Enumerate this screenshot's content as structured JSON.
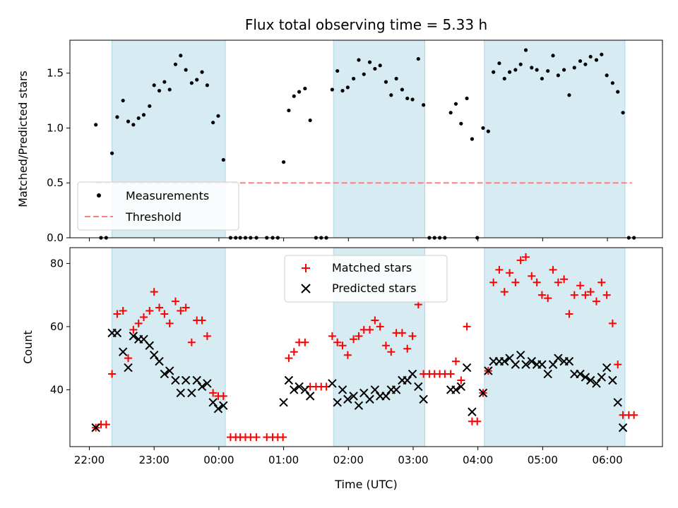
{
  "chart_data": {
    "type": "scatter",
    "title": "Flux total observing time = 5.33 h",
    "xlabel": "Time (UTC)",
    "x_ticks": [
      "22:00",
      "23:00",
      "00:00",
      "01:00",
      "02:00",
      "03:00",
      "04:00",
      "05:00",
      "06:00"
    ],
    "x_tick_values": [
      22.0,
      23.0,
      24.0,
      25.0,
      26.0,
      27.0,
      28.0,
      29.0,
      30.0
    ],
    "xlim": [
      21.7,
      30.85
    ],
    "shaded_intervals": [
      [
        22.35,
        24.1
      ],
      [
        25.77,
        27.18
      ],
      [
        28.1,
        30.27
      ]
    ],
    "shade_color": "#add8e6",
    "top": {
      "ylabel": "Matched/Predicted stars",
      "ylim": [
        0,
        1.8
      ],
      "y_ticks": [
        0.0,
        0.5,
        1.0,
        1.5
      ],
      "y_tick_labels": [
        "0.0",
        "0.5",
        "1.0",
        "1.5"
      ],
      "legend": {
        "placement": "lower-left",
        "measurements": "Measurements",
        "threshold": "Threshold"
      },
      "threshold": {
        "value": 0.5,
        "x_range": [
          22.1,
          30.38
        ],
        "color": "#ff8080"
      },
      "measurements": [
        [
          22.1,
          1.03
        ],
        [
          22.18,
          0
        ],
        [
          22.26,
          0
        ],
        [
          22.35,
          0.77
        ],
        [
          22.43,
          1.1
        ],
        [
          22.52,
          1.25
        ],
        [
          22.6,
          1.06
        ],
        [
          22.68,
          1.03
        ],
        [
          22.76,
          1.09
        ],
        [
          22.84,
          1.12
        ],
        [
          22.93,
          1.2
        ],
        [
          23.0,
          1.39
        ],
        [
          23.08,
          1.34
        ],
        [
          23.16,
          1.42
        ],
        [
          23.24,
          1.35
        ],
        [
          23.33,
          1.58
        ],
        [
          23.41,
          1.66
        ],
        [
          23.49,
          1.53
        ],
        [
          23.58,
          1.41
        ],
        [
          23.66,
          1.44
        ],
        [
          23.74,
          1.51
        ],
        [
          23.82,
          1.39
        ],
        [
          23.91,
          1.05
        ],
        [
          23.99,
          1.11
        ],
        [
          24.07,
          0.71
        ],
        [
          24.18,
          0
        ],
        [
          24.26,
          0
        ],
        [
          24.33,
          0
        ],
        [
          24.41,
          0
        ],
        [
          24.49,
          0
        ],
        [
          24.58,
          0
        ],
        [
          24.74,
          0
        ],
        [
          24.83,
          0
        ],
        [
          24.91,
          0
        ],
        [
          25.0,
          0.69
        ],
        [
          25.08,
          1.16
        ],
        [
          25.16,
          1.29
        ],
        [
          25.24,
          1.33
        ],
        [
          25.33,
          1.36
        ],
        [
          25.41,
          1.07
        ],
        [
          25.5,
          0
        ],
        [
          25.58,
          0
        ],
        [
          25.66,
          0
        ],
        [
          25.75,
          1.35
        ],
        [
          25.83,
          1.52
        ],
        [
          25.91,
          1.34
        ],
        [
          25.99,
          1.37
        ],
        [
          26.08,
          1.45
        ],
        [
          26.16,
          1.62
        ],
        [
          26.24,
          1.49
        ],
        [
          26.33,
          1.6
        ],
        [
          26.41,
          1.54
        ],
        [
          26.49,
          1.57
        ],
        [
          26.58,
          1.42
        ],
        [
          26.66,
          1.3
        ],
        [
          26.74,
          1.45
        ],
        [
          26.83,
          1.35
        ],
        [
          26.91,
          1.27
        ],
        [
          26.99,
          1.26
        ],
        [
          27.08,
          1.63
        ],
        [
          27.16,
          1.21
        ],
        [
          27.25,
          0
        ],
        [
          27.33,
          0
        ],
        [
          27.41,
          0
        ],
        [
          27.49,
          0
        ],
        [
          27.58,
          1.14
        ],
        [
          27.66,
          1.22
        ],
        [
          27.74,
          1.04
        ],
        [
          27.83,
          1.27
        ],
        [
          27.91,
          0.9
        ],
        [
          27.99,
          0
        ],
        [
          28.08,
          1.0
        ],
        [
          28.16,
          0.97
        ],
        [
          28.24,
          1.51
        ],
        [
          28.33,
          1.59
        ],
        [
          28.41,
          1.45
        ],
        [
          28.49,
          1.51
        ],
        [
          28.58,
          1.53
        ],
        [
          28.66,
          1.58
        ],
        [
          28.74,
          1.71
        ],
        [
          28.83,
          1.55
        ],
        [
          28.91,
          1.53
        ],
        [
          28.99,
          1.45
        ],
        [
          29.08,
          1.52
        ],
        [
          29.16,
          1.66
        ],
        [
          29.24,
          1.48
        ],
        [
          29.33,
          1.53
        ],
        [
          29.41,
          1.3
        ],
        [
          29.49,
          1.55
        ],
        [
          29.58,
          1.61
        ],
        [
          29.66,
          1.58
        ],
        [
          29.74,
          1.65
        ],
        [
          29.83,
          1.62
        ],
        [
          29.91,
          1.67
        ],
        [
          29.99,
          1.48
        ],
        [
          30.08,
          1.41
        ],
        [
          30.16,
          1.33
        ],
        [
          30.24,
          1.14
        ],
        [
          30.33,
          0
        ],
        [
          30.41,
          0
        ]
      ]
    },
    "bottom": {
      "ylabel": "Count",
      "ylim": [
        22,
        85
      ],
      "y_ticks": [
        40,
        60,
        80
      ],
      "y_tick_labels": [
        "40",
        "60",
        "80"
      ],
      "legend": {
        "placement": "top-center",
        "matched": "Matched stars",
        "predicted": "Predicted stars"
      },
      "matched": [
        [
          22.1,
          28
        ],
        [
          22.18,
          29
        ],
        [
          22.26,
          29
        ],
        [
          22.35,
          45
        ],
        [
          22.43,
          64
        ],
        [
          22.52,
          65
        ],
        [
          22.6,
          50
        ],
        [
          22.68,
          59
        ],
        [
          22.76,
          61
        ],
        [
          22.84,
          63
        ],
        [
          22.93,
          65
        ],
        [
          23.0,
          71
        ],
        [
          23.08,
          66
        ],
        [
          23.16,
          64
        ],
        [
          23.24,
          61
        ],
        [
          23.33,
          68
        ],
        [
          23.41,
          65
        ],
        [
          23.49,
          66
        ],
        [
          23.58,
          55
        ],
        [
          23.66,
          62
        ],
        [
          23.74,
          62
        ],
        [
          23.82,
          57
        ],
        [
          23.91,
          39
        ],
        [
          23.99,
          38
        ],
        [
          24.07,
          38
        ],
        [
          24.18,
          25
        ],
        [
          24.26,
          25
        ],
        [
          24.33,
          25
        ],
        [
          24.41,
          25
        ],
        [
          24.49,
          25
        ],
        [
          24.58,
          25
        ],
        [
          24.74,
          25
        ],
        [
          24.83,
          25
        ],
        [
          24.91,
          25
        ],
        [
          24.99,
          25
        ],
        [
          25.08,
          50
        ],
        [
          25.16,
          52
        ],
        [
          25.24,
          55
        ],
        [
          25.33,
          55
        ],
        [
          25.41,
          41
        ],
        [
          25.5,
          41
        ],
        [
          25.58,
          41
        ],
        [
          25.66,
          41
        ],
        [
          25.75,
          57
        ],
        [
          25.83,
          55
        ],
        [
          25.91,
          54
        ],
        [
          25.99,
          51
        ],
        [
          26.08,
          56
        ],
        [
          26.16,
          57
        ],
        [
          26.24,
          59
        ],
        [
          26.33,
          59
        ],
        [
          26.41,
          62
        ],
        [
          26.49,
          60
        ],
        [
          26.58,
          54
        ],
        [
          26.66,
          52
        ],
        [
          26.74,
          58
        ],
        [
          26.83,
          58
        ],
        [
          26.91,
          53
        ],
        [
          26.99,
          57
        ],
        [
          27.08,
          67
        ],
        [
          27.16,
          45
        ],
        [
          27.25,
          45
        ],
        [
          27.33,
          45
        ],
        [
          27.41,
          45
        ],
        [
          27.49,
          45
        ],
        [
          27.58,
          45
        ],
        [
          27.66,
          49
        ],
        [
          27.74,
          43
        ],
        [
          27.83,
          60
        ],
        [
          27.91,
          30
        ],
        [
          27.99,
          30
        ],
        [
          28.08,
          39
        ],
        [
          28.16,
          46
        ],
        [
          28.24,
          74
        ],
        [
          28.33,
          78
        ],
        [
          28.41,
          71
        ],
        [
          28.49,
          77
        ],
        [
          28.58,
          74
        ],
        [
          28.66,
          81
        ],
        [
          28.74,
          82
        ],
        [
          28.83,
          76
        ],
        [
          28.91,
          74
        ],
        [
          28.99,
          70
        ],
        [
          29.08,
          69
        ],
        [
          29.16,
          78
        ],
        [
          29.24,
          74
        ],
        [
          29.33,
          75
        ],
        [
          29.41,
          64
        ],
        [
          29.49,
          70
        ],
        [
          29.58,
          73
        ],
        [
          29.66,
          70
        ],
        [
          29.74,
          71
        ],
        [
          29.83,
          68
        ],
        [
          29.91,
          74
        ],
        [
          29.99,
          70
        ],
        [
          30.08,
          61
        ],
        [
          30.16,
          48
        ],
        [
          30.24,
          32
        ],
        [
          30.33,
          32
        ],
        [
          30.41,
          32
        ]
      ],
      "predicted": [
        [
          22.1,
          28
        ],
        [
          22.35,
          58
        ],
        [
          22.43,
          58
        ],
        [
          22.52,
          52
        ],
        [
          22.6,
          47
        ],
        [
          22.68,
          57
        ],
        [
          22.76,
          56
        ],
        [
          22.84,
          56
        ],
        [
          22.93,
          54
        ],
        [
          23.0,
          51
        ],
        [
          23.08,
          49
        ],
        [
          23.16,
          45
        ],
        [
          23.24,
          46
        ],
        [
          23.33,
          43
        ],
        [
          23.41,
          39
        ],
        [
          23.49,
          43
        ],
        [
          23.58,
          39
        ],
        [
          23.66,
          43
        ],
        [
          23.74,
          41
        ],
        [
          23.82,
          42
        ],
        [
          23.91,
          36
        ],
        [
          23.99,
          34
        ],
        [
          24.07,
          35
        ],
        [
          25.0,
          36
        ],
        [
          25.08,
          43
        ],
        [
          25.16,
          40
        ],
        [
          25.24,
          41
        ],
        [
          25.33,
          40
        ],
        [
          25.41,
          38
        ],
        [
          25.75,
          42
        ],
        [
          25.83,
          36
        ],
        [
          25.91,
          40
        ],
        [
          25.99,
          37
        ],
        [
          26.08,
          38
        ],
        [
          26.16,
          35
        ],
        [
          26.24,
          39
        ],
        [
          26.33,
          37
        ],
        [
          26.41,
          40
        ],
        [
          26.49,
          38
        ],
        [
          26.58,
          38
        ],
        [
          26.66,
          40
        ],
        [
          26.74,
          40
        ],
        [
          26.83,
          43
        ],
        [
          26.91,
          43
        ],
        [
          26.99,
          45
        ],
        [
          27.08,
          41
        ],
        [
          27.16,
          37
        ],
        [
          27.58,
          40
        ],
        [
          27.66,
          40
        ],
        [
          27.74,
          41
        ],
        [
          27.83,
          47
        ],
        [
          27.91,
          33
        ],
        [
          28.08,
          39
        ],
        [
          28.16,
          46
        ],
        [
          28.24,
          49
        ],
        [
          28.33,
          49
        ],
        [
          28.41,
          49
        ],
        [
          28.49,
          50
        ],
        [
          28.58,
          48
        ],
        [
          28.66,
          51
        ],
        [
          28.74,
          48
        ],
        [
          28.83,
          49
        ],
        [
          28.91,
          48
        ],
        [
          28.99,
          48
        ],
        [
          29.08,
          45
        ],
        [
          29.16,
          48
        ],
        [
          29.24,
          50
        ],
        [
          29.33,
          49
        ],
        [
          29.41,
          49
        ],
        [
          29.49,
          45
        ],
        [
          29.58,
          45
        ],
        [
          29.66,
          44
        ],
        [
          29.74,
          43
        ],
        [
          29.83,
          42
        ],
        [
          29.91,
          44
        ],
        [
          29.99,
          47
        ],
        [
          30.08,
          43
        ],
        [
          30.16,
          36
        ],
        [
          30.24,
          28
        ]
      ]
    }
  }
}
